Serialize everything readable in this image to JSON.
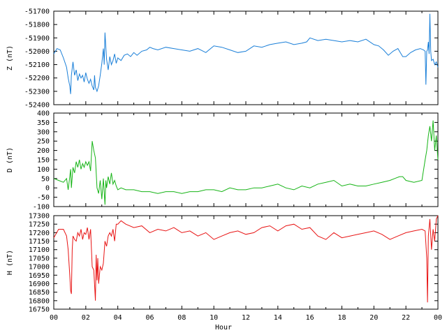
{
  "chart_data": [
    {
      "type": "line",
      "ylabel": "Z (nT)",
      "ylim": [
        -52400,
        -51700
      ],
      "yticks": [
        "-52400",
        "-52300",
        "-52200",
        "-52100",
        "-52000",
        "-51900",
        "-51800",
        "-51700"
      ],
      "xlim": [
        0,
        24
      ],
      "color": "#1a7fd8",
      "series": [
        {
          "x": [
            0,
            0.2,
            0.4,
            0.6,
            0.8,
            0.9,
            1.0,
            1.05,
            1.1,
            1.2,
            1.3,
            1.4,
            1.5,
            1.6,
            1.7,
            1.8,
            1.9,
            2.0,
            2.1,
            2.2,
            2.3,
            2.4,
            2.5,
            2.55,
            2.6,
            2.7,
            2.8,
            2.9,
            3.0,
            3.1,
            3.15,
            3.2,
            3.3,
            3.4,
            3.5,
            3.6,
            3.7,
            3.8,
            3.9,
            4.0,
            4.2,
            4.4,
            4.6,
            4.8,
            5.0,
            5.2,
            5.5,
            5.8,
            6.0,
            6.2,
            6.5,
            7.0,
            7.5,
            8.0,
            8.5,
            9.0,
            9.5,
            10.0,
            10.5,
            11.0,
            11.5,
            12.0,
            12.5,
            13.0,
            13.5,
            14.0,
            14.5,
            15.0,
            15.5,
            15.8,
            16.0,
            16.5,
            17.0,
            17.5,
            18.0,
            18.5,
            19.0,
            19.5,
            20.0,
            20.3,
            20.6,
            20.9,
            21.2,
            21.5,
            21.8,
            22.0,
            22.3,
            22.6,
            22.9,
            23.1,
            23.2,
            23.25,
            23.3,
            23.35,
            23.4,
            23.45,
            23.5,
            23.55,
            23.6,
            23.7,
            23.8,
            23.9,
            24.0
          ],
          "y": [
            -52020,
            -51980,
            -51990,
            -52050,
            -52120,
            -52200,
            -52260,
            -52320,
            -52180,
            -52080,
            -52180,
            -52140,
            -52220,
            -52170,
            -52200,
            -52180,
            -52230,
            -52160,
            -52210,
            -52240,
            -52210,
            -52260,
            -52290,
            -52180,
            -52270,
            -52300,
            -52260,
            -52180,
            -52090,
            -51980,
            -52100,
            -51860,
            -52060,
            -52140,
            -52040,
            -52100,
            -52070,
            -52020,
            -52090,
            -52050,
            -52070,
            -52030,
            -52020,
            -52040,
            -52010,
            -52030,
            -52000,
            -51990,
            -51970,
            -51980,
            -51990,
            -51970,
            -51980,
            -51990,
            -52000,
            -51980,
            -52010,
            -51960,
            -51970,
            -51990,
            -52010,
            -52000,
            -51960,
            -51970,
            -51950,
            -51940,
            -51930,
            -51950,
            -51940,
            -51930,
            -51900,
            -51920,
            -51910,
            -51920,
            -51930,
            -51920,
            -51930,
            -51910,
            -51950,
            -51960,
            -51990,
            -52030,
            -52000,
            -51980,
            -52040,
            -52040,
            -52010,
            -51990,
            -51980,
            -51990,
            -52000,
            -52250,
            -52000,
            -51990,
            -51930,
            -52020,
            -51720,
            -52000,
            -52070,
            -52060,
            -52100,
            -52080,
            -52120
          ]
        }
      ]
    },
    {
      "type": "line",
      "ylabel": "D (nT)",
      "ylim": [
        -100,
        400
      ],
      "yticks": [
        "-100",
        "-50",
        "0",
        "50",
        "100",
        "150",
        "200",
        "250",
        "300",
        "350",
        "400"
      ],
      "xlim": [
        0,
        24
      ],
      "color": "#16b416",
      "series": [
        {
          "x": [
            0,
            0.3,
            0.6,
            0.8,
            0.9,
            1.0,
            1.05,
            1.1,
            1.2,
            1.3,
            1.4,
            1.5,
            1.6,
            1.7,
            1.8,
            1.9,
            2.0,
            2.1,
            2.2,
            2.3,
            2.4,
            2.5,
            2.6,
            2.7,
            2.8,
            2.9,
            3.0,
            3.1,
            3.2,
            3.25,
            3.3,
            3.4,
            3.5,
            3.6,
            3.7,
            3.8,
            3.9,
            4.0,
            4.2,
            4.5,
            5.0,
            5.5,
            6.0,
            6.5,
            7.0,
            7.5,
            8.0,
            8.5,
            9.0,
            9.5,
            10.0,
            10.5,
            11.0,
            11.5,
            12.0,
            12.5,
            13.0,
            13.5,
            14.0,
            14.5,
            15.0,
            15.5,
            16.0,
            16.5,
            17.0,
            17.5,
            18.0,
            18.5,
            19.0,
            19.5,
            20.0,
            20.5,
            21.0,
            21.3,
            21.6,
            21.8,
            22.0,
            22.5,
            23.0,
            23.2,
            23.3,
            23.4,
            23.5,
            23.6,
            23.7,
            23.8,
            23.9,
            24.0
          ],
          "y": [
            50,
            40,
            30,
            50,
            -10,
            60,
            100,
            0,
            110,
            80,
            140,
            110,
            150,
            100,
            130,
            110,
            140,
            120,
            140,
            90,
            250,
            200,
            160,
            0,
            -30,
            40,
            -60,
            50,
            -90,
            40,
            0,
            60,
            20,
            80,
            20,
            40,
            10,
            -10,
            0,
            -10,
            -10,
            -20,
            -20,
            -30,
            -20,
            -20,
            -30,
            -20,
            -20,
            -10,
            -10,
            -20,
            0,
            -10,
            -10,
            0,
            0,
            10,
            20,
            0,
            -10,
            10,
            0,
            20,
            30,
            40,
            10,
            20,
            10,
            10,
            20,
            30,
            40,
            50,
            60,
            60,
            40,
            30,
            40,
            150,
            200,
            280,
            330,
            250,
            360,
            200,
            280,
            150
          ]
        }
      ]
    },
    {
      "type": "line",
      "ylabel": "H (nT)",
      "xlabel": "Hour",
      "ylim": [
        16750,
        17300
      ],
      "yticks": [
        "16750",
        "16800",
        "16850",
        "16900",
        "16950",
        "17000",
        "17050",
        "17100",
        "17150",
        "17200",
        "17250",
        "17300"
      ],
      "xlim": [
        0,
        24
      ],
      "xticks": [
        "00",
        "02",
        "04",
        "06",
        "08",
        "10",
        "12",
        "14",
        "16",
        "18",
        "20",
        "22",
        "00"
      ],
      "color": "#e81414",
      "series": [
        {
          "x": [
            0,
            0.3,
            0.6,
            0.8,
            0.9,
            1.0,
            1.05,
            1.1,
            1.15,
            1.2,
            1.3,
            1.4,
            1.5,
            1.6,
            1.7,
            1.8,
            1.9,
            2.0,
            2.1,
            2.2,
            2.3,
            2.4,
            2.5,
            2.6,
            2.65,
            2.7,
            2.75,
            2.8,
            2.9,
            3.0,
            3.1,
            3.2,
            3.3,
            3.4,
            3.5,
            3.6,
            3.7,
            3.8,
            3.9,
            4.0,
            4.2,
            4.5,
            5.0,
            5.5,
            6.0,
            6.5,
            7.0,
            7.5,
            8.0,
            8.5,
            9.0,
            9.5,
            10.0,
            10.5,
            11.0,
            11.5,
            12.0,
            12.5,
            13.0,
            13.5,
            14.0,
            14.5,
            15.0,
            15.5,
            16.0,
            16.5,
            17.0,
            17.5,
            18.0,
            18.5,
            19.0,
            19.5,
            20.0,
            20.5,
            21.0,
            21.5,
            22.0,
            22.5,
            23.0,
            23.2,
            23.3,
            23.35,
            23.4,
            23.5,
            23.6,
            23.7,
            23.8,
            23.9,
            24.0
          ],
          "y": [
            17170,
            17220,
            17220,
            17180,
            17100,
            16950,
            16860,
            16840,
            17100,
            17180,
            17160,
            17150,
            17200,
            17180,
            17220,
            17160,
            17200,
            17190,
            17230,
            17160,
            17220,
            17000,
            16980,
            16800,
            17070,
            16920,
            17050,
            16900,
            17000,
            16980,
            17020,
            17150,
            17120,
            17180,
            17200,
            17180,
            17220,
            17150,
            17250,
            17250,
            17270,
            17250,
            17230,
            17240,
            17200,
            17220,
            17210,
            17230,
            17200,
            17210,
            17180,
            17200,
            17160,
            17180,
            17200,
            17210,
            17190,
            17200,
            17230,
            17240,
            17210,
            17240,
            17250,
            17220,
            17230,
            17180,
            17160,
            17200,
            17170,
            17180,
            17190,
            17200,
            17210,
            17190,
            17160,
            17180,
            17200,
            17210,
            17220,
            17210,
            17050,
            16790,
            17180,
            17280,
            17100,
            17220,
            17150,
            17280,
            17300
          ]
        }
      ]
    }
  ]
}
